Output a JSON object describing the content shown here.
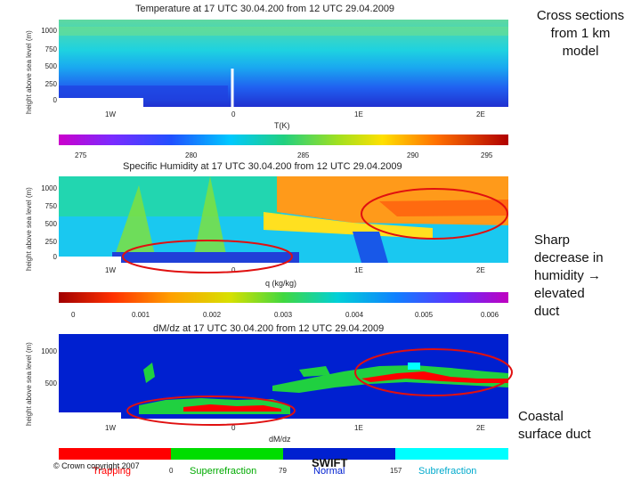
{
  "annotations": {
    "top_right": "Cross sections\nfrom 1 km\nmodel",
    "elevated": "Sharp\ndecrease in\nhumidity →\nelevated\nduct",
    "surface": "Coastal\nsurface duct"
  },
  "footer": {
    "copyright": "© Crown copyright 2007",
    "logo": "SWIFT"
  },
  "colors": {
    "ellipse": "#e01010",
    "background": "#0020d0"
  },
  "chart_data": [
    {
      "type": "heatmap",
      "title": "Temperature at 17 UTC 30.04.200 from 12 UTC 29.04.2009",
      "ylabel": "height above sea level (m)",
      "xlabel": "T(K)",
      "yticks": [
        "1000",
        "750",
        "500",
        "250",
        "0"
      ],
      "xticks": [
        "1W",
        "0",
        "1E",
        "2E"
      ],
      "colorbar": {
        "ticks": [
          "275",
          "280",
          "285",
          "290",
          "295"
        ],
        "range": [
          273,
          297
        ]
      }
    },
    {
      "type": "heatmap",
      "title": "Specific Humidity at 17 UTC 30.04.200 from 12 UTC 29.04.2009",
      "ylabel": "height above sea level (m)",
      "xlabel": "q (kg/kg)",
      "yticks": [
        "1000",
        "750",
        "500",
        "250",
        "0"
      ],
      "xticks": [
        "1W",
        "0",
        "1E",
        "2E"
      ],
      "colorbar": {
        "ticks": [
          "0",
          "0.001",
          "0.002",
          "0.003",
          "0.004",
          "0.005",
          "0.006"
        ],
        "range": [
          0,
          0.006
        ]
      }
    },
    {
      "type": "heatmap",
      "title": "dM/dz at 17 UTC 30.04.200 from 12 UTC 29.04.2009",
      "ylabel": "height above sea level (m)",
      "xlabel": "dM/dz",
      "yticks": [
        "1000",
        "500"
      ],
      "xticks": [
        "1W",
        "0",
        "1E",
        "2E"
      ],
      "colorbar": {
        "ticks": [
          "0",
          "79",
          "157"
        ],
        "categories": [
          "Trapping",
          "Superrefraction",
          "Normal",
          "Subrefraction"
        ],
        "category_colors": [
          "#ff0000",
          "#00dd00",
          "#0020d0",
          "#00ffff"
        ]
      }
    }
  ]
}
